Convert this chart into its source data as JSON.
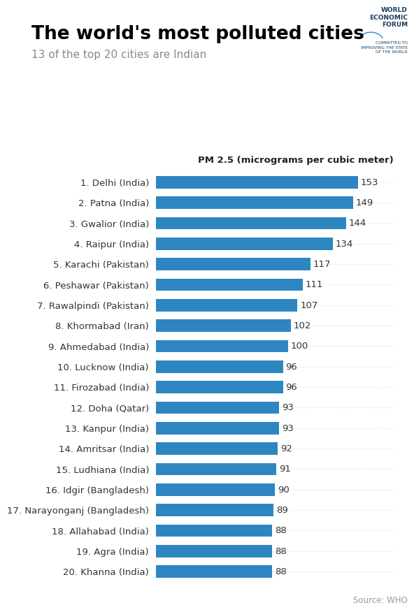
{
  "title": "The world's most polluted cities",
  "subtitle": "13 of the top 20 cities are Indian",
  "axis_label": "PM 2.5 (micrograms per cubic meter)",
  "source": "Source: WHO",
  "bar_color": "#2E86C1",
  "background_color": "#FFFFFF",
  "categories": [
    "1. Delhi (India)",
    "2. Patna (India)",
    "3. Gwalior (India)",
    "4. Raipur (India)",
    "5. Karachi (Pakistan)",
    "6. Peshawar (Pakistan)",
    "7. Rawalpindi (Pakistan)",
    "8. Khormabad (Iran)",
    "9. Ahmedabad (India)",
    "10. Lucknow (India)",
    "11. Firozabad (India)",
    "12. Doha (Qatar)",
    "13. Kanpur (India)",
    "14. Amritsar (India)",
    "15. Ludhiana (India)",
    "16. Idgir (Bangladesh)",
    "17. Narayonganj (Bangladesh)",
    "18. Allahabad (India)",
    "19. Agra (India)",
    "20. Khanna (India)"
  ],
  "values": [
    153,
    149,
    144,
    134,
    117,
    111,
    107,
    102,
    100,
    96,
    96,
    93,
    93,
    92,
    91,
    90,
    89,
    88,
    88,
    88
  ],
  "xlim": [
    0,
    180
  ],
  "title_fontsize": 19,
  "subtitle_fontsize": 11,
  "axis_label_fontsize": 9.5,
  "tick_fontsize": 9.5,
  "value_fontsize": 9.5,
  "source_fontsize": 8.5,
  "wef_fontsize": 6.5,
  "committed_fontsize": 4.2
}
